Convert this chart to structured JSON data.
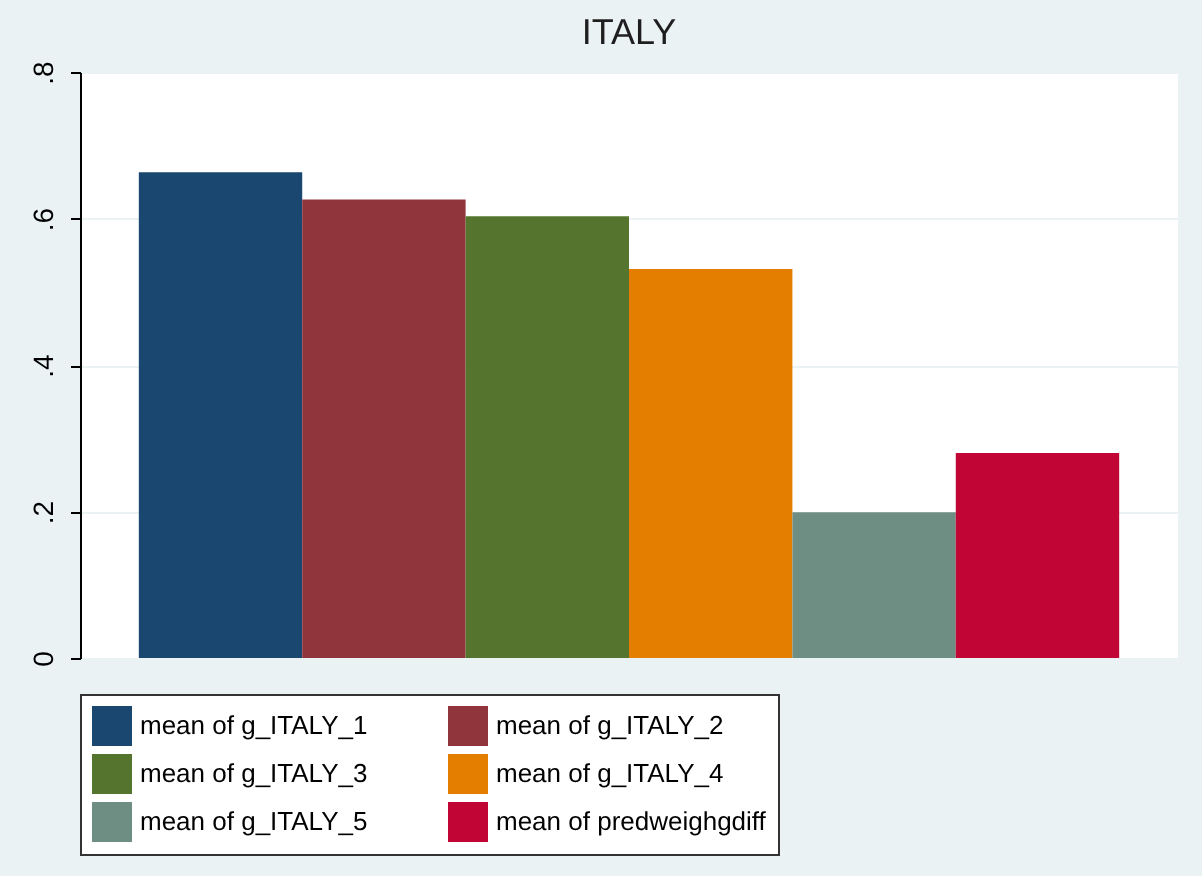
{
  "chart_data": {
    "type": "bar",
    "title": "ITALY",
    "categories": [
      null
    ],
    "series": [
      {
        "name": "mean of g_ITALY_1",
        "color": "#1a476f",
        "values": [
          0.663
        ]
      },
      {
        "name": "mean of g_ITALY_2",
        "color": "#90353b",
        "values": [
          0.626
        ]
      },
      {
        "name": "mean of g_ITALY_3",
        "color": "#55752f",
        "values": [
          0.603
        ]
      },
      {
        "name": "mean of g_ITALY_4",
        "color": "#e37e00",
        "values": [
          0.531
        ]
      },
      {
        "name": "mean of g_ITALY_5",
        "color": "#6e8e84",
        "values": [
          0.199
        ]
      },
      {
        "name": "mean of predweighgdiff",
        "color": "#c10534",
        "values": [
          0.28
        ]
      }
    ],
    "ylim": [
      0,
      0.8
    ],
    "yticks": [
      0,
      {
        "value": 0.2,
        "label": ".2"
      },
      {
        "value": 0.4,
        "label": ".4"
      },
      {
        "value": 0.6,
        "label": ".6"
      },
      {
        "value": 0.8,
        "label": ".8"
      }
    ],
    "grid": "y",
    "legend": "bottom",
    "tick_labels": "y"
  }
}
